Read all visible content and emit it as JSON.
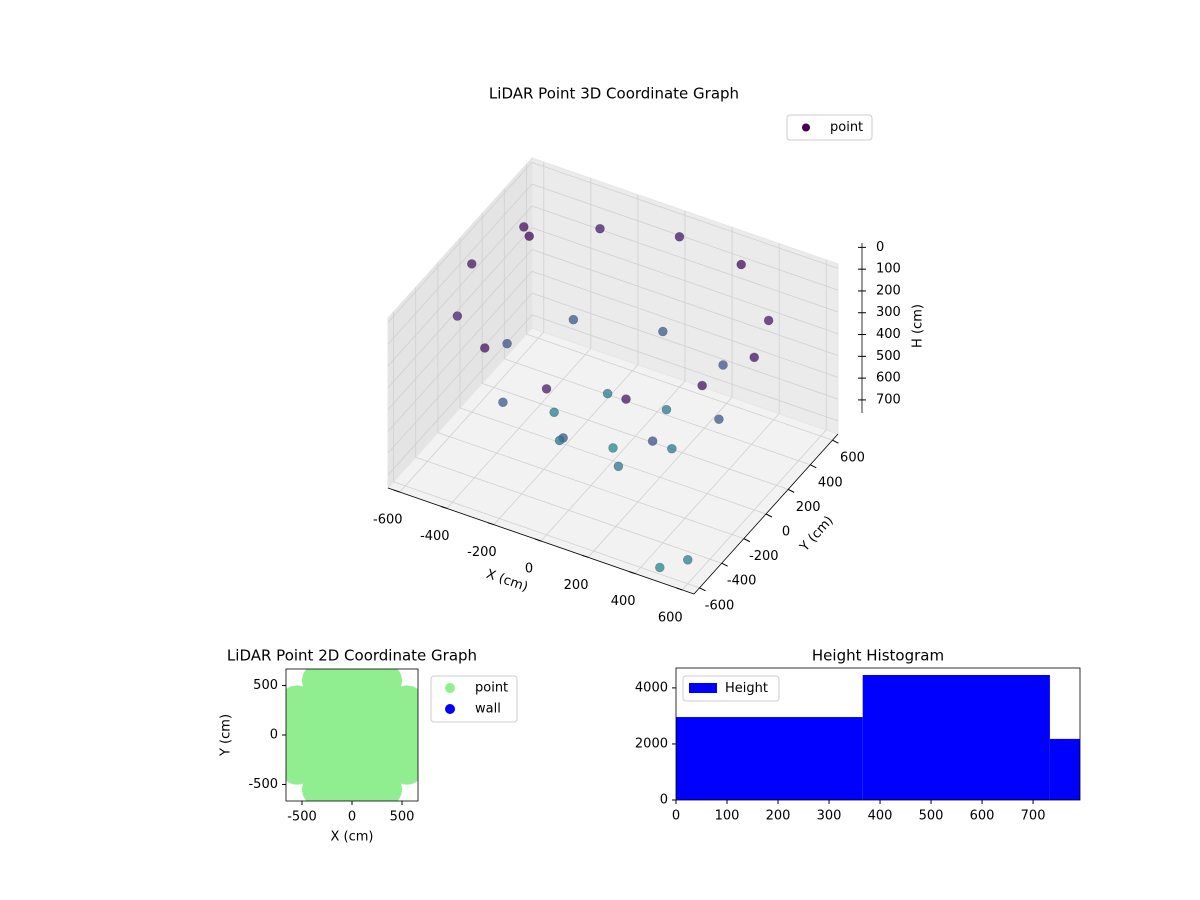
{
  "chart_data": [
    {
      "type": "scatter3d",
      "title": "LiDAR Point 3D Coordinate Graph",
      "xlabel": "X (cm)",
      "ylabel": "Y (cm)",
      "zlabel": "H (cm)",
      "xlim": [
        -650,
        650
      ],
      "ylim": [
        -650,
        650
      ],
      "zlim": [
        760,
        -20
      ],
      "xticks": [
        -600,
        -400,
        -200,
        0,
        200,
        400,
        600
      ],
      "yticks": [
        -600,
        -400,
        -200,
        0,
        200,
        400,
        600
      ],
      "zticks": [
        0,
        100,
        200,
        300,
        400,
        500,
        600,
        700
      ],
      "grid": true,
      "legend": "upper right",
      "colormap": [
        "#440154",
        "#472d7b",
        "#3b528b",
        "#2c728e",
        "#21918c"
      ],
      "series": [
        {
          "name": "point",
          "color": "#440154",
          "x": [
            600,
            520,
            300,
            0,
            -300,
            -520,
            -600,
            -520,
            -300,
            0,
            300,
            520,
            450,
            318,
            0,
            -318,
            -450,
            -318,
            0,
            318,
            250,
            125,
            -125,
            -250,
            -125,
            125,
            0,
            -450,
            600,
            500
          ],
          "y": [
            0,
            300,
            520,
            600,
            520,
            300,
            0,
            -300,
            -520,
            -600,
            -520,
            -300,
            0,
            318,
            450,
            318,
            0,
            -318,
            -450,
            -318,
            0,
            217,
            217,
            0,
            -217,
            -217,
            0,
            200,
            -600,
            -640
          ],
          "z": [
            60,
            90,
            40,
            70,
            100,
            50,
            80,
            120,
            60,
            90,
            70,
            50,
            400,
            380,
            420,
            410,
            390,
            430,
            400,
            370,
            610,
            600,
            620,
            630,
            590,
            615,
            700,
            10,
            650,
            700
          ]
        }
      ]
    },
    {
      "type": "scatter",
      "title": "LiDAR Point 2D Coordinate Graph",
      "xlabel": "X (cm)",
      "ylabel": "Y (cm)",
      "xlim": [
        -660,
        660
      ],
      "ylim": [
        -667,
        667
      ],
      "xticks": [
        -500,
        0,
        500
      ],
      "yticks": [
        -500,
        0,
        500
      ],
      "legend": "outside right",
      "series": [
        {
          "name": "point",
          "color": "#90ee90",
          "x": [
            -550,
            -550,
            -550,
            -550,
            -330,
            -330,
            -330,
            -330,
            -330,
            -330,
            -110,
            -110,
            -110,
            -110,
            -110,
            -110,
            110,
            110,
            110,
            110,
            110,
            110,
            330,
            330,
            330,
            330,
            330,
            330,
            550,
            550,
            550,
            550
          ],
          "y": [
            -330,
            -110,
            110,
            330,
            -550,
            -330,
            -110,
            110,
            330,
            550,
            -550,
            -330,
            -110,
            110,
            330,
            550,
            -550,
            -330,
            -110,
            110,
            330,
            550,
            -550,
            -330,
            -110,
            110,
            330,
            550,
            -330,
            -110,
            110,
            330
          ]
        },
        {
          "name": "wall",
          "color": "#0000ff",
          "x": [],
          "y": []
        }
      ]
    },
    {
      "type": "histogram",
      "title": "Height Histogram",
      "bins": [
        0,
        366,
        733,
        792
      ],
      "values": [
        2960,
        4460,
        2180
      ],
      "xlim": [
        0,
        792
      ],
      "ylim": [
        0,
        4710
      ],
      "xticks": [
        0,
        100,
        200,
        300,
        400,
        500,
        600,
        700
      ],
      "yticks": [
        0,
        2000,
        4000
      ],
      "legend": "upper left",
      "series_name": "Height",
      "color": "#0000ff"
    }
  ]
}
